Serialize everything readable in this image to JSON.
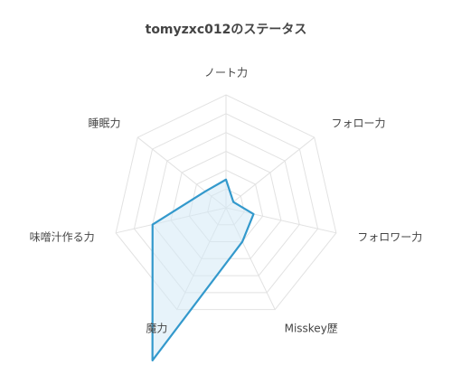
{
  "chart_data": {
    "type": "radar",
    "title": "tomyzxc012のステータス",
    "axes": [
      "ノート力",
      "フォロー力",
      "フォロワー力",
      "Misskey歴",
      "魔力",
      "味噌汁作る力",
      "睡眠力"
    ],
    "max": 6,
    "grid_levels": 6,
    "grid": true,
    "series": [
      {
        "values": [
          1.5,
          0.5,
          1.5,
          2.0,
          9.0,
          4.0,
          1.4
        ]
      }
    ],
    "colors": {
      "stroke": "#3399cc",
      "fill": "#d4eaf5",
      "grid": "#e2e2e2"
    }
  }
}
